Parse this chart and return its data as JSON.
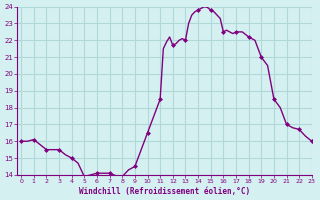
{
  "x": [
    0,
    0.5,
    1,
    1.5,
    2,
    2.5,
    3,
    3.5,
    4,
    4.5,
    5,
    5.5,
    6,
    6.5,
    7,
    7.5,
    8,
    8.5,
    9,
    9.5,
    10,
    10.5,
    11,
    11.25,
    11.5,
    11.75,
    12,
    12.25,
    12.5,
    12.75,
    13,
    13.25,
    13.5,
    13.75,
    14,
    14.25,
    14.5,
    14.75,
    15,
    15.25,
    15.5,
    15.75,
    16,
    16.25,
    16.5,
    16.75,
    17,
    17.5,
    18,
    18.5,
    19,
    19.5,
    20,
    20.5,
    21,
    21.5,
    22,
    22.5,
    23
  ],
  "y": [
    16.0,
    16.0,
    16.1,
    15.8,
    15.5,
    15.5,
    15.5,
    15.2,
    15.0,
    14.7,
    13.9,
    14.0,
    14.1,
    14.1,
    14.1,
    13.95,
    13.9,
    14.3,
    14.5,
    15.5,
    16.5,
    17.5,
    18.5,
    21.5,
    21.9,
    22.2,
    21.7,
    21.8,
    22.0,
    22.1,
    22.0,
    23.0,
    23.5,
    23.7,
    23.8,
    23.9,
    24.0,
    23.95,
    23.8,
    23.7,
    23.5,
    23.3,
    22.5,
    22.6,
    22.5,
    22.4,
    22.5,
    22.5,
    22.2,
    22.0,
    21.0,
    20.5,
    18.5,
    18.0,
    17.0,
    16.8,
    16.7,
    16.3,
    16.0
  ],
  "line_color": "#800080",
  "marker_color": "#800080",
  "bg_color": "#d5f0f0",
  "grid_color": "#b0d8d8",
  "xlabel": "Windchill (Refroidissement éolien,°C)",
  "xlabel_color": "#800080",
  "xtick_color": "#800080",
  "ytick_color": "#800080",
  "ylim": [
    14,
    24
  ],
  "xlim": [
    -0.3,
    23
  ],
  "yticks": [
    14,
    15,
    16,
    17,
    18,
    19,
    20,
    21,
    22,
    23,
    24
  ],
  "xticks": [
    0,
    1,
    2,
    3,
    4,
    5,
    6,
    7,
    8,
    9,
    10,
    11,
    12,
    13,
    14,
    15,
    16,
    17,
    18,
    19,
    20,
    21,
    22,
    23
  ],
  "linewidth": 1.0,
  "markersize": 2.0,
  "marker_x": [
    0,
    1,
    2,
    3,
    4,
    5,
    6,
    7,
    8,
    9,
    10,
    11,
    12,
    13,
    14,
    15,
    16,
    17,
    18,
    19,
    20,
    21,
    22,
    23
  ],
  "marker_y": [
    16.0,
    16.1,
    15.5,
    15.5,
    15.0,
    13.9,
    14.1,
    14.1,
    13.9,
    14.5,
    16.5,
    18.5,
    21.7,
    22.0,
    23.8,
    23.8,
    22.5,
    22.5,
    22.2,
    21.0,
    18.5,
    17.0,
    16.7,
    16.0
  ]
}
